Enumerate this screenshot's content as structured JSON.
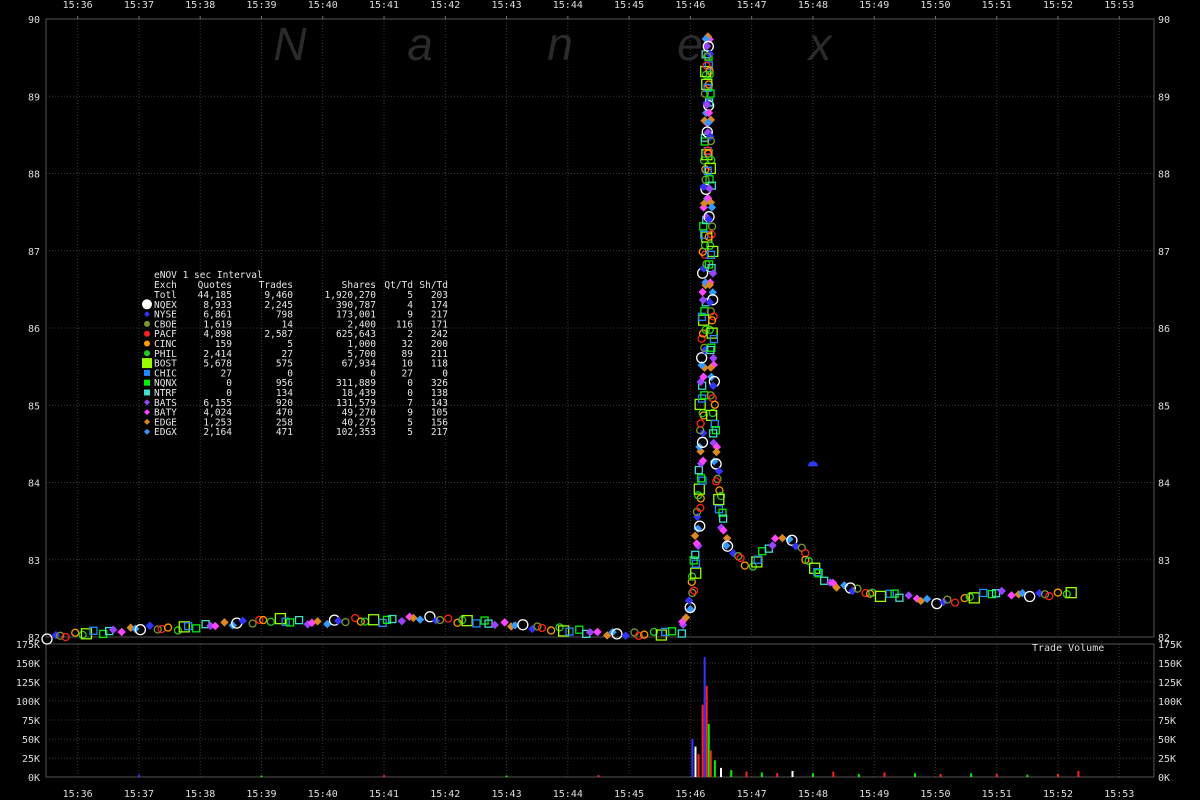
{
  "watermark": [
    "N",
    "a",
    "n",
    "e",
    "x"
  ],
  "chart_data": [
    {
      "type": "scatter",
      "title": "",
      "xlabel": "",
      "ylabel": "",
      "x_ticks": [
        "15:36",
        "15:37",
        "15:38",
        "15:39",
        "15:40",
        "15:41",
        "15:42",
        "15:43",
        "15:44",
        "15:45",
        "15:46",
        "15:47",
        "15:48",
        "15:49",
        "15:50",
        "15:51",
        "15:52",
        "15:53"
      ],
      "y_ticks": [
        82,
        83,
        84,
        85,
        86,
        87,
        88,
        89,
        90
      ],
      "ylim": [
        82,
        90
      ],
      "xlim": [
        "15:35:29",
        "15:53:34"
      ],
      "grid": true,
      "series": [
        {
          "name": "Trades",
          "points": [
            [
              "15:35:30",
              82.0
            ],
            [
              "15:35:50",
              82.02
            ],
            [
              "15:36:10",
              82.05
            ],
            [
              "15:36:30",
              82.07
            ],
            [
              "15:36:50",
              82.1
            ],
            [
              "15:37:10",
              82.12
            ],
            [
              "15:37:30",
              82.1
            ],
            [
              "15:37:50",
              82.13
            ],
            [
              "15:38:10",
              82.15
            ],
            [
              "15:38:30",
              82.17
            ],
            [
              "15:38:50",
              82.2
            ],
            [
              "15:39:10",
              82.22
            ],
            [
              "15:39:30",
              82.2
            ],
            [
              "15:39:50",
              82.18
            ],
            [
              "15:40:10",
              82.2
            ],
            [
              "15:40:30",
              82.22
            ],
            [
              "15:40:50",
              82.2
            ],
            [
              "15:41:10",
              82.22
            ],
            [
              "15:41:30",
              82.25
            ],
            [
              "15:41:50",
              82.23
            ],
            [
              "15:42:10",
              82.21
            ],
            [
              "15:42:30",
              82.2
            ],
            [
              "15:42:50",
              82.17
            ],
            [
              "15:43:10",
              82.15
            ],
            [
              "15:43:30",
              82.12
            ],
            [
              "15:43:50",
              82.1
            ],
            [
              "15:44:10",
              82.07
            ],
            [
              "15:44:30",
              82.05
            ],
            [
              "15:44:50",
              82.04
            ],
            [
              "15:45:10",
              82.03
            ],
            [
              "15:45:30",
              82.05
            ],
            [
              "15:45:50",
              82.07
            ],
            [
              "15:46:00",
              82.4
            ],
            [
              "15:46:05",
              83.0
            ],
            [
              "15:46:10",
              84.0
            ],
            [
              "15:46:13",
              86.0
            ],
            [
              "15:46:15",
              88.0
            ],
            [
              "15:46:17",
              89.8
            ],
            [
              "15:46:20",
              87.0
            ],
            [
              "15:46:22",
              85.0
            ],
            [
              "15:46:25",
              84.3
            ],
            [
              "15:46:30",
              83.6
            ],
            [
              "15:46:35",
              83.2
            ],
            [
              "15:46:45",
              83.05
            ],
            [
              "15:47:00",
              82.9
            ],
            [
              "15:47:15",
              83.15
            ],
            [
              "15:47:30",
              83.3
            ],
            [
              "15:47:45",
              83.2
            ],
            [
              "15:48:00",
              82.9
            ],
            [
              "15:48:15",
              82.7
            ],
            [
              "15:48:30",
              82.65
            ],
            [
              "15:48:45",
              82.6
            ],
            [
              "15:49:00",
              82.55
            ],
            [
              "15:49:20",
              82.55
            ],
            [
              "15:49:40",
              82.5
            ],
            [
              "15:50:00",
              82.45
            ],
            [
              "15:50:20",
              82.47
            ],
            [
              "15:50:40",
              82.53
            ],
            [
              "15:51:00",
              82.58
            ],
            [
              "15:51:20",
              82.55
            ],
            [
              "15:51:40",
              82.55
            ],
            [
              "15:52:00",
              82.55
            ],
            [
              "15:52:20",
              82.6
            ]
          ]
        }
      ],
      "outlier": {
        "time": "15:48:00",
        "price": 84.25,
        "color": "#2a3cff"
      },
      "legend": {
        "title": "eNOV 1 sec Interval",
        "columns": [
          "Exch",
          "Quotes",
          "Trades",
          "Shares",
          "Qt/Td",
          "Sh/Td"
        ],
        "rows": [
          {
            "exch": "Totl",
            "quotes": "44,185",
            "trades": "9,460",
            "shares": "1,920,270",
            "qt_td": "5",
            "sh_td": "203",
            "color": "",
            "marker": ""
          },
          {
            "exch": "NQEX",
            "quotes": "8,933",
            "trades": "2,245",
            "shares": "390,787",
            "qt_td": "4",
            "sh_td": "174",
            "color": "#ffffff",
            "marker": "circle-big"
          },
          {
            "exch": "NYSE",
            "quotes": "6,861",
            "trades": "798",
            "shares": "173,001",
            "qt_td": "9",
            "sh_td": "217",
            "color": "#3333ff",
            "marker": "diamond"
          },
          {
            "exch": "CBOE",
            "quotes": "1,619",
            "trades": "14",
            "shares": "2,400",
            "qt_td": "116",
            "sh_td": "171",
            "color": "#7a9a2a",
            "marker": "circle"
          },
          {
            "exch": "PACF",
            "quotes": "4,898",
            "trades": "2,587",
            "shares": "625,643",
            "qt_td": "2",
            "sh_td": "242",
            "color": "#ff2020",
            "marker": "circle"
          },
          {
            "exch": "CINC",
            "quotes": "159",
            "trades": "5",
            "shares": "1,000",
            "qt_td": "32",
            "sh_td": "200",
            "color": "#ff9900",
            "marker": "circle"
          },
          {
            "exch": "PHIL",
            "quotes": "2,414",
            "trades": "27",
            "shares": "5,700",
            "qt_td": "89",
            "sh_td": "211",
            "color": "#22cc22",
            "marker": "circle"
          },
          {
            "exch": "BOST",
            "quotes": "5,678",
            "trades": "575",
            "shares": "67,934",
            "qt_td": "10",
            "sh_td": "118",
            "color": "#99ff00",
            "marker": "square-big"
          },
          {
            "exch": "CHIC",
            "quotes": "27",
            "trades": "0",
            "shares": "0",
            "qt_td": "27",
            "sh_td": "0",
            "color": "#2288ff",
            "marker": "square"
          },
          {
            "exch": "NQNX",
            "quotes": "0",
            "trades": "956",
            "shares": "311,889",
            "qt_td": "0",
            "sh_td": "326",
            "color": "#00ee00",
            "marker": "square"
          },
          {
            "exch": "NTRF",
            "quotes": "0",
            "trades": "134",
            "shares": "18,439",
            "qt_td": "0",
            "sh_td": "138",
            "color": "#44ddcc",
            "marker": "square"
          },
          {
            "exch": "BATS",
            "quotes": "6,155",
            "trades": "920",
            "shares": "131,579",
            "qt_td": "7",
            "sh_td": "143",
            "color": "#9944ff",
            "marker": "diamond"
          },
          {
            "exch": "BATY",
            "quotes": "4,024",
            "trades": "470",
            "shares": "49,270",
            "qt_td": "9",
            "sh_td": "105",
            "color": "#ff44ff",
            "marker": "diamond"
          },
          {
            "exch": "EDGE",
            "quotes": "1,253",
            "trades": "258",
            "shares": "40,275",
            "qt_td": "5",
            "sh_td": "156",
            "color": "#dd8822",
            "marker": "diamond"
          },
          {
            "exch": "EDGX",
            "quotes": "2,164",
            "trades": "471",
            "shares": "102,353",
            "qt_td": "5",
            "sh_td": "217",
            "color": "#3399ff",
            "marker": "diamond"
          }
        ]
      }
    },
    {
      "type": "bar",
      "title": "Trade Volume",
      "y_ticks": [
        "0K",
        "25K",
        "50K",
        "75K",
        "100K",
        "125K",
        "150K",
        "175K"
      ],
      "ylim": [
        0,
        175000
      ],
      "x_ticks": [
        "15:36",
        "15:37",
        "15:38",
        "15:39",
        "15:40",
        "15:41",
        "15:42",
        "15:43",
        "15:44",
        "15:45",
        "15:46",
        "15:47",
        "15:48",
        "15:49",
        "15:50",
        "15:51",
        "15:52",
        "15:53"
      ],
      "bars": [
        {
          "time": "15:46:02",
          "value": 50000,
          "color": "#3333ff"
        },
        {
          "time": "15:46:05",
          "value": 40000,
          "color": "#ffffff"
        },
        {
          "time": "15:46:08",
          "value": 30000,
          "color": "#ff2020"
        },
        {
          "time": "15:46:12",
          "value": 95000,
          "color": "#ff2020"
        },
        {
          "time": "15:46:14",
          "value": 158000,
          "color": "#3333ff"
        },
        {
          "time": "15:46:16",
          "value": 120000,
          "color": "#ff2020"
        },
        {
          "time": "15:46:18",
          "value": 70000,
          "color": "#00ee00"
        },
        {
          "time": "15:46:20",
          "value": 35000,
          "color": "#ff2020"
        },
        {
          "time": "15:46:24",
          "value": 22000,
          "color": "#00ee00"
        },
        {
          "time": "15:46:30",
          "value": 12000,
          "color": "#ffffff"
        },
        {
          "time": "15:46:40",
          "value": 9000,
          "color": "#00ee00"
        },
        {
          "time": "15:46:55",
          "value": 7000,
          "color": "#ff2020"
        },
        {
          "time": "15:47:10",
          "value": 6000,
          "color": "#00ee00"
        },
        {
          "time": "15:47:25",
          "value": 5000,
          "color": "#ff2020"
        },
        {
          "time": "15:47:40",
          "value": 8000,
          "color": "#ffffff"
        },
        {
          "time": "15:48:00",
          "value": 5000,
          "color": "#00ee00"
        },
        {
          "time": "15:48:20",
          "value": 7000,
          "color": "#ff2020"
        },
        {
          "time": "15:48:45",
          "value": 4000,
          "color": "#00ee00"
        },
        {
          "time": "15:49:10",
          "value": 6000,
          "color": "#ff2020"
        },
        {
          "time": "15:49:40",
          "value": 5000,
          "color": "#00ee00"
        },
        {
          "time": "15:50:05",
          "value": 4000,
          "color": "#ff2020"
        },
        {
          "time": "15:50:35",
          "value": 5000,
          "color": "#00ee00"
        },
        {
          "time": "15:51:00",
          "value": 4000,
          "color": "#ff2020"
        },
        {
          "time": "15:51:30",
          "value": 3000,
          "color": "#00ee00"
        },
        {
          "time": "15:52:00",
          "value": 4000,
          "color": "#ff2020"
        },
        {
          "time": "15:52:20",
          "value": 8000,
          "color": "#ff2020"
        },
        {
          "time": "15:37:00",
          "value": 3000,
          "color": "#3333ff"
        },
        {
          "time": "15:39:00",
          "value": 2000,
          "color": "#00ee00"
        },
        {
          "time": "15:41:00",
          "value": 2500,
          "color": "#ff2020"
        },
        {
          "time": "15:43:00",
          "value": 2000,
          "color": "#00ee00"
        },
        {
          "time": "15:44:30",
          "value": 2500,
          "color": "#ff2020"
        }
      ]
    }
  ]
}
